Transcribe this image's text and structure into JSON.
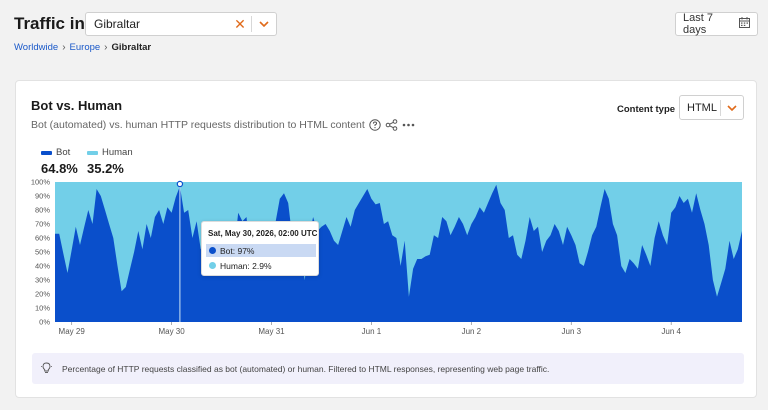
{
  "header": {
    "title": "Traffic in",
    "location_value": "Gibraltar",
    "date_range": "Last 7 days"
  },
  "breadcrumb": [
    "Worldwide",
    "Europe",
    "Gibraltar"
  ],
  "card": {
    "title": "Bot vs. Human",
    "subtitle": "Bot (automated) vs. human HTTP requests distribution to HTML content",
    "content_type_label": "Content type",
    "content_type_value": "HTML"
  },
  "legend": [
    {
      "name": "Bot",
      "value": "64.8%",
      "color": "#0a4fcb"
    },
    {
      "name": "Human",
      "value": "35.2%",
      "color": "#72cfe8"
    }
  ],
  "tooltip": {
    "title": "Sat, May 30, 2026, 02:00 UTC",
    "rows": [
      {
        "label": "Bot: 97%",
        "color": "#0a4fcb"
      },
      {
        "label": "Human: 2.9%",
        "color": "#72cfe8"
      }
    ]
  },
  "note": "Percentage of HTTP requests classified as bot (automated) or human. Filtered to HTML responses, representing web page traffic.",
  "chart_data": {
    "type": "area",
    "stacked": true,
    "y_ticks": [
      "0%",
      "10%",
      "20%",
      "30%",
      "40%",
      "50%",
      "60%",
      "70%",
      "80%",
      "90%",
      "100%"
    ],
    "ylim": [
      0,
      100
    ],
    "x_tick_labels": [
      "May 29",
      "May 30",
      "May 31",
      "Jun 1",
      "Jun 2",
      "Jun 3",
      "Jun 4"
    ],
    "x_tick_positions": [
      4,
      28,
      52,
      76,
      100,
      124,
      148
    ],
    "n_points": 166,
    "series": [
      {
        "name": "Bot",
        "color": "#0a4fcb",
        "keypoints": [
          [
            0,
            63
          ],
          [
            1,
            63
          ],
          [
            3,
            35
          ],
          [
            5,
            68
          ],
          [
            6,
            55
          ],
          [
            8,
            80
          ],
          [
            9,
            70
          ],
          [
            10,
            95
          ],
          [
            11,
            90
          ],
          [
            13,
            70
          ],
          [
            14,
            60
          ],
          [
            15,
            40
          ],
          [
            16,
            22
          ],
          [
            17,
            25
          ],
          [
            19,
            50
          ],
          [
            20,
            65
          ],
          [
            21,
            52
          ],
          [
            22,
            70
          ],
          [
            23,
            60
          ],
          [
            24,
            75
          ],
          [
            25,
            80
          ],
          [
            26,
            70
          ],
          [
            27,
            82
          ],
          [
            28,
            78
          ],
          [
            29,
            89
          ],
          [
            30,
            97
          ],
          [
            31,
            78
          ],
          [
            32,
            80
          ],
          [
            33,
            60
          ],
          [
            34,
            72
          ],
          [
            35,
            52
          ],
          [
            36,
            58
          ],
          [
            37,
            52
          ],
          [
            38,
            45
          ],
          [
            39,
            55
          ],
          [
            40,
            70
          ],
          [
            41,
            62
          ],
          [
            42,
            60
          ],
          [
            43,
            50
          ],
          [
            44,
            78
          ],
          [
            45,
            72
          ],
          [
            46,
            75
          ],
          [
            47,
            45
          ],
          [
            48,
            55
          ],
          [
            49,
            60
          ],
          [
            50,
            55
          ],
          [
            51,
            40
          ],
          [
            52,
            68
          ],
          [
            53,
            72
          ],
          [
            54,
            88
          ],
          [
            55,
            92
          ],
          [
            56,
            85
          ],
          [
            57,
            60
          ],
          [
            58,
            65
          ],
          [
            59,
            45
          ],
          [
            60,
            30
          ],
          [
            61,
            60
          ],
          [
            62,
            75
          ],
          [
            63,
            65
          ],
          [
            64,
            68
          ],
          [
            65,
            70
          ],
          [
            66,
            65
          ],
          [
            67,
            58
          ],
          [
            68,
            55
          ],
          [
            69,
            65
          ],
          [
            70,
            75
          ],
          [
            71,
            68
          ],
          [
            72,
            80
          ],
          [
            73,
            85
          ],
          [
            74,
            90
          ],
          [
            75,
            95
          ],
          [
            76,
            88
          ],
          [
            77,
            84
          ],
          [
            78,
            85
          ],
          [
            79,
            70
          ],
          [
            80,
            72
          ],
          [
            81,
            62
          ],
          [
            82,
            60
          ],
          [
            83,
            40
          ],
          [
            84,
            58
          ],
          [
            85,
            18
          ],
          [
            86,
            38
          ],
          [
            87,
            45
          ],
          [
            88,
            45
          ],
          [
            89,
            47
          ],
          [
            90,
            48
          ],
          [
            91,
            62
          ],
          [
            92,
            60
          ],
          [
            93,
            75
          ],
          [
            94,
            72
          ],
          [
            95,
            62
          ],
          [
            96,
            68
          ],
          [
            97,
            75
          ],
          [
            98,
            70
          ],
          [
            99,
            62
          ],
          [
            100,
            70
          ],
          [
            101,
            75
          ],
          [
            102,
            82
          ],
          [
            103,
            78
          ],
          [
            104,
            85
          ],
          [
            105,
            92
          ],
          [
            106,
            98
          ],
          [
            107,
            85
          ],
          [
            108,
            80
          ],
          [
            109,
            60
          ],
          [
            110,
            62
          ],
          [
            111,
            48
          ],
          [
            112,
            45
          ],
          [
            113,
            58
          ],
          [
            114,
            75
          ],
          [
            115,
            65
          ],
          [
            116,
            68
          ],
          [
            117,
            50
          ],
          [
            118,
            58
          ],
          [
            119,
            62
          ],
          [
            120,
            70
          ],
          [
            121,
            65
          ],
          [
            122,
            55
          ],
          [
            123,
            68
          ],
          [
            124,
            62
          ],
          [
            125,
            55
          ],
          [
            126,
            42
          ],
          [
            127,
            40
          ],
          [
            128,
            50
          ],
          [
            129,
            62
          ],
          [
            130,
            68
          ],
          [
            131,
            82
          ],
          [
            132,
            95
          ],
          [
            133,
            88
          ],
          [
            134,
            70
          ],
          [
            135,
            62
          ],
          [
            136,
            40
          ],
          [
            137,
            35
          ],
          [
            138,
            45
          ],
          [
            139,
            42
          ],
          [
            140,
            38
          ],
          [
            141,
            55
          ],
          [
            142,
            48
          ],
          [
            143,
            40
          ],
          [
            144,
            60
          ],
          [
            145,
            72
          ],
          [
            146,
            62
          ],
          [
            147,
            55
          ],
          [
            148,
            78
          ],
          [
            149,
            82
          ],
          [
            150,
            90
          ],
          [
            151,
            85
          ],
          [
            152,
            88
          ],
          [
            153,
            78
          ],
          [
            154,
            92
          ],
          [
            155,
            80
          ],
          [
            156,
            70
          ],
          [
            157,
            55
          ],
          [
            158,
            30
          ],
          [
            159,
            18
          ],
          [
            160,
            28
          ],
          [
            161,
            38
          ],
          [
            162,
            58
          ],
          [
            163,
            45
          ],
          [
            164,
            52
          ],
          [
            165,
            65
          ]
        ]
      },
      {
        "name": "Human",
        "color": "#72cfe8",
        "note": "fills remainder to 100%"
      }
    ],
    "hover_index": 30
  }
}
